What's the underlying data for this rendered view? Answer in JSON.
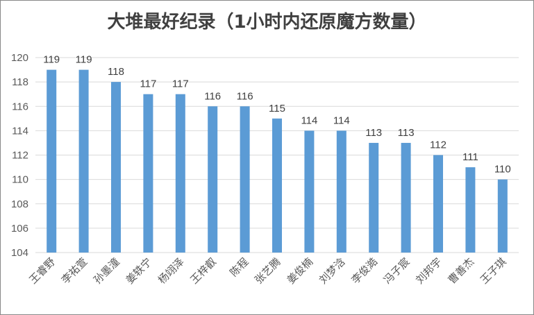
{
  "chart_data": {
    "type": "bar",
    "title": "大堆最好纪录（1小时内还原魔方数量）",
    "xlabel": "",
    "ylabel": "",
    "categories": [
      "王睿野",
      "李祐萱",
      "孙墨潼",
      "姜轶宁",
      "杨翊泽",
      "王梓叡",
      "陈程",
      "张艺腾",
      "姜俊楠",
      "刘梦浛",
      "李俊澔",
      "冯子宸",
      "刘邦宇",
      "曹善杰",
      "王子琪"
    ],
    "values": [
      119,
      119,
      118,
      117,
      117,
      116,
      116,
      115,
      114,
      114,
      113,
      113,
      112,
      111,
      110
    ],
    "ylim": [
      104,
      120
    ],
    "yticks": [
      104,
      106,
      108,
      110,
      112,
      114,
      116,
      118,
      120
    ],
    "grid": true,
    "legend": "none",
    "bar_color": "#5B9BD5",
    "grid_color": "#D9D9D9"
  }
}
